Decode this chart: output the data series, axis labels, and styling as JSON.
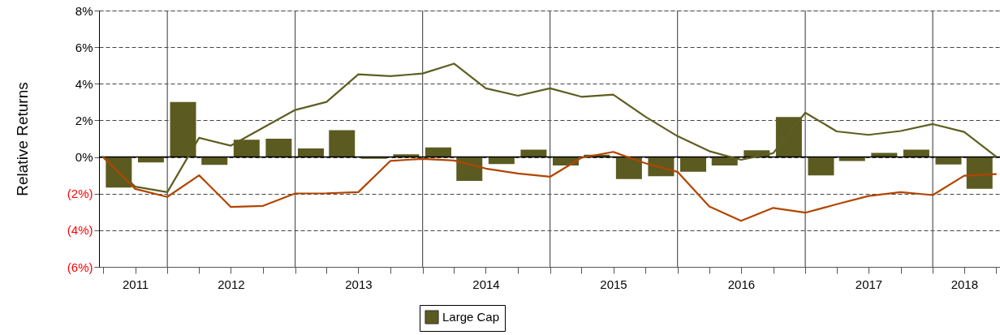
{
  "chart_data": {
    "type": "bar",
    "ylabel": "Relative Returns",
    "ylim": [
      -6,
      8
    ],
    "yticks": [
      {
        "value": -6,
        "label": "(6%)"
      },
      {
        "value": -4,
        "label": "(4%)"
      },
      {
        "value": -2,
        "label": "(2%)"
      },
      {
        "value": 0,
        "label": "0%"
      },
      {
        "value": 2,
        "label": "2%"
      },
      {
        "value": 4,
        "label": "4%"
      },
      {
        "value": 6,
        "label": "6%"
      },
      {
        "value": 8,
        "label": "8%"
      }
    ],
    "xlim": [
      "2011-07-01",
      "2018-07-01"
    ],
    "xticks": [
      {
        "value": "2011-07-01",
        "label": null
      },
      {
        "value": "2011-10-01",
        "label": "2011"
      },
      {
        "value": "2012-01-01",
        "label": null
      },
      {
        "value": "2012-04-01",
        "label": null
      },
      {
        "value": "2012-07-01",
        "label": "2012"
      },
      {
        "value": "2012-10-01",
        "label": null
      },
      {
        "value": "2013-01-01",
        "label": null
      },
      {
        "value": "2013-04-01",
        "label": null
      },
      {
        "value": "2013-07-01",
        "label": "2013"
      },
      {
        "value": "2013-10-01",
        "label": null
      },
      {
        "value": "2014-01-01",
        "label": null
      },
      {
        "value": "2014-04-01",
        "label": null
      },
      {
        "value": "2014-07-01",
        "label": "2014"
      },
      {
        "value": "2014-10-01",
        "label": null
      },
      {
        "value": "2015-01-01",
        "label": null
      },
      {
        "value": "2015-04-01",
        "label": null
      },
      {
        "value": "2015-07-01",
        "label": "2015"
      },
      {
        "value": "2015-10-01",
        "label": null
      },
      {
        "value": "2016-01-01",
        "label": null
      },
      {
        "value": "2016-04-01",
        "label": null
      },
      {
        "value": "2016-07-01",
        "label": "2016"
      },
      {
        "value": "2016-10-01",
        "label": null
      },
      {
        "value": "2017-01-01",
        "label": null
      },
      {
        "value": "2017-04-01",
        "label": null
      },
      {
        "value": "2017-07-01",
        "label": "2017"
      },
      {
        "value": "2017-10-01",
        "label": null
      },
      {
        "value": "2018-01-01",
        "label": null
      },
      {
        "value": "2018-04-01",
        "label": "2018"
      },
      {
        "value": "2018-07-01",
        "label": null
      }
    ],
    "grid": "y",
    "legend": "bottom",
    "series": [
      {
        "name": "Large Cap",
        "color": "#5b5b21",
        "x": [
          "2011-08-15",
          "2011-11-15",
          "2012-02-15",
          "2012-05-15",
          "2012-08-15",
          "2012-11-15",
          "2013-02-15",
          "2013-05-15",
          "2013-08-15",
          "2013-11-15",
          "2014-02-15",
          "2014-05-15",
          "2014-08-15",
          "2014-11-15",
          "2015-02-15",
          "2015-05-15",
          "2015-08-15",
          "2015-11-15",
          "2016-02-15",
          "2016-05-15",
          "2016-08-15",
          "2016-11-15",
          "2017-02-15",
          "2017-05-15",
          "2017-08-15",
          "2017-11-15",
          "2018-02-15",
          "2018-05-15"
        ],
        "values": [
          -1.67,
          -0.3,
          3.0,
          -0.43,
          0.94,
          1.0,
          0.47,
          1.46,
          -0.1,
          0.15,
          0.52,
          -1.3,
          -0.38,
          0.4,
          -0.46,
          0.13,
          -1.2,
          -1.05,
          -0.81,
          -0.46,
          0.37,
          2.18,
          -1.0,
          -0.22,
          0.22,
          0.4,
          -0.41,
          -1.74
        ]
      },
      {
        "type": "line",
        "color": "#5e5e22",
        "x": [
          "2011-07-01",
          "2011-10-01",
          "2012-01-01",
          "2012-04-01",
          "2012-07-01",
          "2012-10-01",
          "2013-01-01",
          "2013-04-01",
          "2013-07-01",
          "2013-10-01",
          "2014-01-01",
          "2014-04-01",
          "2014-07-01",
          "2014-10-01",
          "2015-01-01",
          "2015-04-01",
          "2015-07-01",
          "2015-10-01",
          "2016-01-01",
          "2016-04-01",
          "2016-07-01",
          "2016-10-01",
          "2017-01-01",
          "2017-04-01",
          "2017-07-01",
          "2017-10-01",
          "2018-01-01",
          "2018-04-01",
          "2018-07-01"
        ],
        "values": [
          0,
          -1.62,
          -1.92,
          1.05,
          0.62,
          1.6,
          2.57,
          3.01,
          4.52,
          4.42,
          4.56,
          5.1,
          3.75,
          3.35,
          3.75,
          3.29,
          3.41,
          2.2,
          1.14,
          0.32,
          -0.15,
          0.21,
          2.42,
          1.4,
          1.21,
          1.42,
          1.8,
          1.37,
          0.03
        ]
      },
      {
        "type": "line",
        "color": "#b24500",
        "x": [
          "2011-07-01",
          "2011-10-01",
          "2012-01-01",
          "2012-04-01",
          "2012-07-01",
          "2012-10-01",
          "2013-01-01",
          "2013-04-01",
          "2013-07-01",
          "2013-10-01",
          "2014-01-01",
          "2014-04-01",
          "2014-07-01",
          "2014-10-01",
          "2015-01-01",
          "2015-04-01",
          "2015-07-01",
          "2015-10-01",
          "2016-01-01",
          "2016-04-01",
          "2016-07-01",
          "2016-10-01",
          "2017-01-01",
          "2017-04-01",
          "2017-07-01",
          "2017-10-01",
          "2018-01-01",
          "2018-04-01",
          "2018-07-01"
        ],
        "values": [
          0,
          -1.74,
          -2.18,
          -1.0,
          -2.73,
          -2.67,
          -1.99,
          -1.98,
          -1.92,
          -0.21,
          -0.1,
          -0.19,
          -0.63,
          -0.9,
          -1.08,
          -0.04,
          0.28,
          -0.34,
          -0.81,
          -2.7,
          -3.49,
          -2.78,
          -3.04,
          -2.58,
          -2.13,
          -1.92,
          -2.08,
          -1.02,
          -0.93
        ]
      }
    ],
    "ref_lines": [
      {
        "axis": "x",
        "value": "2012-01-01",
        "color": "#555555"
      },
      {
        "axis": "x",
        "value": "2013-01-01",
        "color": "#555555"
      },
      {
        "axis": "x",
        "value": "2014-01-01",
        "color": "#555555"
      },
      {
        "axis": "x",
        "value": "2015-01-01",
        "color": "#555555"
      },
      {
        "axis": "x",
        "value": "2016-01-01",
        "color": "#555555"
      },
      {
        "axis": "x",
        "value": "2017-01-01",
        "color": "#555555"
      },
      {
        "axis": "x",
        "value": "2018-01-01",
        "color": "#555555"
      },
      {
        "axis": "y",
        "value": 0,
        "color": "#000000"
      }
    ]
  }
}
